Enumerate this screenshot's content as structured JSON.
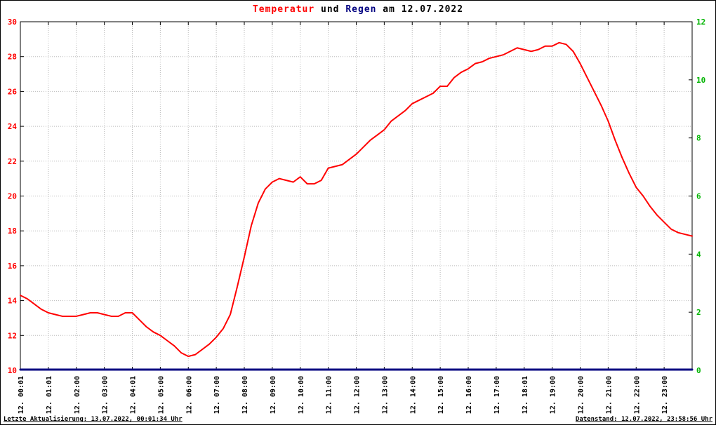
{
  "title": {
    "part_temperatur": "Temperatur",
    "part_und": " und ",
    "part_regen": "Regen",
    "part_date": " am 12.07.2022"
  },
  "colors": {
    "temperature": "#ff0000",
    "rain": "#000080",
    "left_axis": "#ff0000",
    "right_axis": "#00b400",
    "grid": "#bbbbbb",
    "axis": "#000000",
    "background": "#ffffff"
  },
  "footer": {
    "left": "Letzte Aktualisierung: 13.07.2022, 00:01:34 Uhr",
    "right": "Datenstand: 12.07.2022, 23:58:56 Uhr"
  },
  "chart_data": {
    "type": "line",
    "title": "Temperatur und Regen am 12.07.2022",
    "grid": true,
    "x_tick_labels": [
      "12. 00:01",
      "12. 01:01",
      "12. 02:00",
      "12. 03:00",
      "12. 04:01",
      "12. 05:00",
      "12. 06:00",
      "12. 07:00",
      "12. 08:00",
      "12. 09:00",
      "12. 10:00",
      "12. 11:00",
      "12. 12:00",
      "12. 13:00",
      "12. 14:00",
      "12. 15:00",
      "12. 16:00",
      "12. 17:00",
      "12. 18:01",
      "12. 19:00",
      "12. 20:00",
      "12. 21:00",
      "12. 22:00",
      "12. 23:00"
    ],
    "x_tick_hours": [
      0,
      1,
      2,
      3,
      4,
      5,
      6,
      7,
      8,
      9,
      10,
      11,
      12,
      13,
      14,
      15,
      16,
      17,
      18,
      19,
      20,
      21,
      22,
      23
    ],
    "x_range_hours": [
      0,
      24
    ],
    "y_left": {
      "name": "Temperatur",
      "min": 10,
      "max": 30,
      "step": 2,
      "tick_labels": [
        "10",
        "12",
        "14",
        "16",
        "18",
        "20",
        "22",
        "24",
        "26",
        "28",
        "30"
      ],
      "color": "#ff0000"
    },
    "y_right": {
      "name": "Regen",
      "min": 0,
      "max": 12,
      "step": 2,
      "tick_labels": [
        "0",
        "2",
        "4",
        "6",
        "8",
        "10",
        "12"
      ],
      "color": "#00b400"
    },
    "series": [
      {
        "name": "Temperatur",
        "axis": "left",
        "color": "#ff0000",
        "width": 2,
        "x": [
          0,
          0.25,
          0.5,
          0.75,
          1,
          1.25,
          1.5,
          1.75,
          2,
          2.25,
          2.5,
          2.75,
          3,
          3.25,
          3.5,
          3.75,
          4,
          4.25,
          4.5,
          4.75,
          5,
          5.25,
          5.5,
          5.75,
          6,
          6.25,
          6.5,
          6.75,
          7,
          7.25,
          7.5,
          7.75,
          8,
          8.25,
          8.5,
          8.75,
          9,
          9.25,
          9.5,
          9.75,
          10,
          10.25,
          10.5,
          10.75,
          11,
          11.25,
          11.5,
          11.75,
          12,
          12.25,
          12.5,
          12.75,
          13,
          13.25,
          13.5,
          13.75,
          14,
          14.25,
          14.5,
          14.75,
          15,
          15.25,
          15.5,
          15.75,
          16,
          16.25,
          16.5,
          16.75,
          17,
          17.25,
          17.5,
          17.75,
          18,
          18.25,
          18.5,
          18.75,
          19,
          19.25,
          19.5,
          19.75,
          20,
          20.25,
          20.5,
          20.75,
          21,
          21.25,
          21.5,
          21.75,
          22,
          22.25,
          22.5,
          22.75,
          23,
          23.25,
          23.5,
          23.75,
          24
        ],
        "values": [
          14.3,
          14.1,
          13.8,
          13.5,
          13.3,
          13.2,
          13.1,
          13.1,
          13.1,
          13.2,
          13.3,
          13.3,
          13.2,
          13.1,
          13.1,
          13.3,
          13.3,
          12.9,
          12.5,
          12.2,
          12.0,
          11.7,
          11.4,
          11.0,
          10.8,
          10.9,
          11.2,
          11.5,
          11.9,
          12.4,
          13.2,
          14.8,
          16.5,
          18.3,
          19.6,
          20.4,
          20.8,
          21.0,
          20.9,
          20.8,
          21.1,
          20.7,
          20.7,
          20.9,
          21.6,
          21.7,
          21.8,
          22.1,
          22.4,
          22.8,
          23.2,
          23.5,
          23.8,
          24.3,
          24.6,
          24.9,
          25.3,
          25.5,
          25.7,
          25.9,
          26.3,
          26.3,
          26.8,
          27.1,
          27.3,
          27.6,
          27.7,
          27.9,
          28.0,
          28.1,
          28.3,
          28.5,
          28.4,
          28.3,
          28.4,
          28.6,
          28.6,
          28.8,
          28.7,
          28.3,
          27.6,
          26.8,
          26.0,
          25.2,
          24.3,
          23.2,
          22.2,
          21.3,
          20.5,
          20.0,
          19.4,
          18.9,
          18.5,
          18.1,
          17.9,
          17.8,
          17.7
        ]
      },
      {
        "name": "Regen",
        "axis": "right",
        "color": "#000080",
        "width": 3,
        "x": [
          0,
          24
        ],
        "values": [
          0,
          0
        ]
      }
    ]
  }
}
